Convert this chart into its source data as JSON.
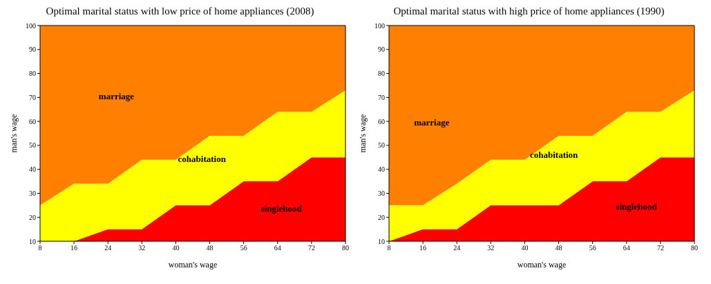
{
  "chart_data": [
    {
      "type": "area",
      "stacked": true,
      "title": "Optimal marital status with low price of home appliances (2008)",
      "xlabel": "woman's wage",
      "ylabel": "man's wage",
      "x": [
        8,
        16,
        24,
        32,
        40,
        48,
        56,
        64,
        72,
        80
      ],
      "xlim": [
        8,
        80
      ],
      "xticks": [
        8,
        16,
        24,
        32,
        40,
        48,
        56,
        64,
        72,
        80
      ],
      "ylim": [
        10,
        100
      ],
      "yticks": [
        10,
        20,
        30,
        40,
        50,
        60,
        70,
        80,
        90,
        100
      ],
      "series": [
        {
          "color": "#ff0000",
          "values": [
            10,
            10,
            15,
            15,
            25,
            25,
            35,
            35,
            45,
            45
          ]
        },
        {
          "color": "#ffff00",
          "values": [
            15,
            24,
            19,
            29,
            19,
            29,
            19,
            29,
            19,
            28
          ]
        },
        {
          "color": "#ff8000",
          "values": [
            75,
            66,
            66,
            56,
            56,
            46,
            46,
            36,
            36,
            27
          ]
        }
      ],
      "annotations": [
        "marriage",
        "cohabitation",
        "singlehood"
      ]
    },
    {
      "type": "area",
      "stacked": true,
      "title": "Optimal marital status with high price of home appliances (1990)",
      "xlabel": "woman's wage",
      "ylabel": "man's wage",
      "x": [
        8,
        16,
        24,
        32,
        40,
        48,
        56,
        64,
        72,
        80
      ],
      "xlim": [
        8,
        80
      ],
      "xticks": [
        8,
        16,
        24,
        32,
        40,
        48,
        56,
        64,
        72,
        80
      ],
      "ylim": [
        10,
        100
      ],
      "yticks": [
        10,
        20,
        30,
        40,
        50,
        60,
        70,
        80,
        90,
        100
      ],
      "series": [
        {
          "color": "#ff0000",
          "values": [
            10,
            15,
            15,
            25,
            25,
            25,
            35,
            35,
            45,
            45
          ]
        },
        {
          "color": "#ffff00",
          "values": [
            15,
            10,
            19,
            19,
            19,
            29,
            19,
            29,
            19,
            28
          ]
        },
        {
          "color": "#ff8000",
          "values": [
            75,
            75,
            66,
            56,
            56,
            46,
            46,
            36,
            36,
            27
          ]
        }
      ],
      "annotations": [
        "marriage",
        "cohabitation",
        "singlehood"
      ]
    }
  ]
}
